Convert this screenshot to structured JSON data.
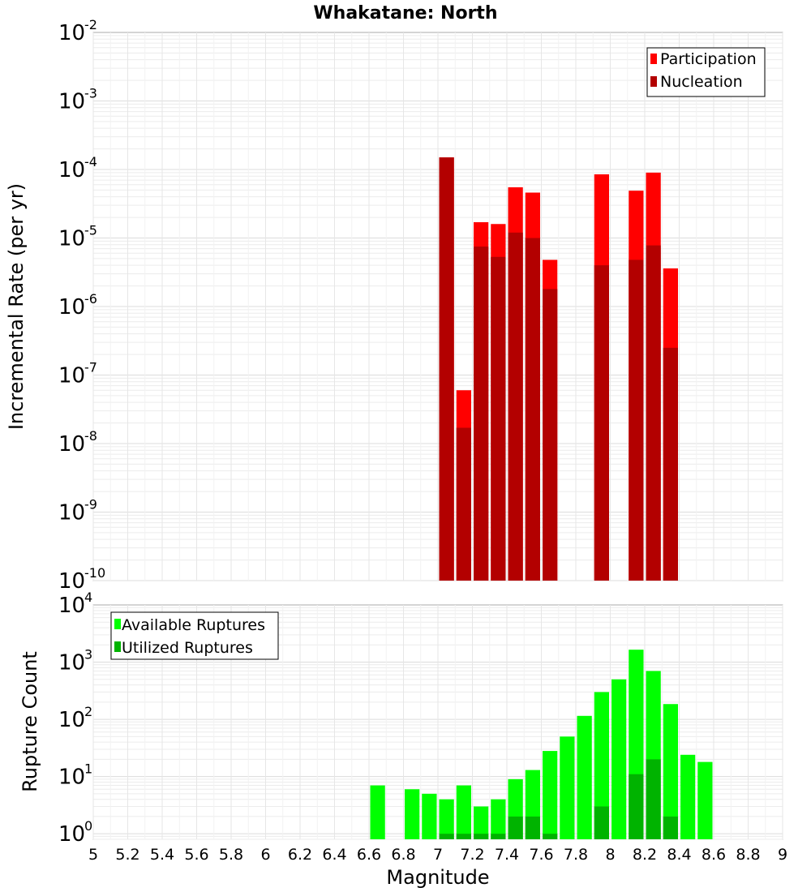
{
  "chart_data": [
    {
      "type": "bar",
      "title": "Whakatane: North",
      "ylabel": "Incremental Rate (per yr)",
      "yscale": "log",
      "ylim": [
        1e-10,
        0.01
      ],
      "xlim": [
        5,
        9
      ],
      "grid": true,
      "legend_position": "top-right",
      "series": [
        {
          "name": "Participation",
          "color": "#ff0000",
          "x": [
            7.0,
            7.1,
            7.2,
            7.3,
            7.4,
            7.5,
            7.6,
            7.9,
            8.1,
            8.2,
            8.3
          ],
          "values": [
            0.00015,
            6e-08,
            1.7e-05,
            1.6e-05,
            5.5e-05,
            4.6e-05,
            4.8e-06,
            8.5e-05,
            4.9e-05,
            9e-05,
            3.6e-06
          ]
        },
        {
          "name": "Nucleation",
          "color": "#b30000",
          "x": [
            7.0,
            7.1,
            7.2,
            7.3,
            7.4,
            7.5,
            7.6,
            7.9,
            8.1,
            8.2,
            8.3
          ],
          "values": [
            0.00015,
            1.7e-08,
            7.5e-06,
            5.3e-06,
            1.2e-05,
            1e-05,
            1.8e-06,
            4e-06,
            4.8e-06,
            7.8e-06,
            2.5e-07
          ]
        }
      ]
    },
    {
      "type": "bar",
      "ylabel": "Rupture Count",
      "xlabel": "Magnitude",
      "yscale": "log",
      "ylim": [
        0.8,
        10000
      ],
      "xlim": [
        5,
        9
      ],
      "grid": true,
      "legend_position": "top-left",
      "xticks": [
        "5",
        "5.2",
        "5.4",
        "5.6",
        "5.8",
        "6",
        "6.2",
        "6.4",
        "6.6",
        "6.8",
        "7",
        "7.2",
        "7.4",
        "7.6",
        "7.8",
        "8",
        "8.2",
        "8.4",
        "8.6",
        "8.8",
        "9"
      ],
      "series": [
        {
          "name": "Available Ruptures",
          "color": "#00ff00",
          "x": [
            6.6,
            6.8,
            6.9,
            7.0,
            7.1,
            7.2,
            7.3,
            7.4,
            7.5,
            7.6,
            7.7,
            7.8,
            7.9,
            8.0,
            8.1,
            8.2,
            8.3,
            8.4,
            8.5
          ],
          "values": [
            7,
            6,
            5,
            4,
            7,
            3,
            4,
            9,
            13,
            28,
            50,
            115,
            300,
            500,
            1650,
            700,
            185,
            24,
            18
          ]
        },
        {
          "name": "Utilized Ruptures",
          "color": "#00b300",
          "x": [
            7.0,
            7.1,
            7.2,
            7.3,
            7.4,
            7.5,
            7.6,
            7.9,
            8.1,
            8.2,
            8.3
          ],
          "values": [
            1,
            1,
            1,
            1,
            2,
            2,
            1,
            3,
            11,
            20,
            2
          ]
        }
      ]
    }
  ]
}
